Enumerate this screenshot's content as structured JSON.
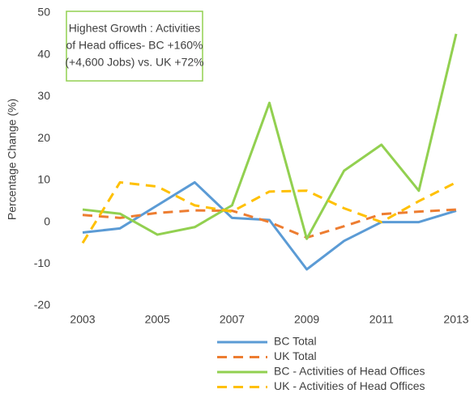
{
  "chart_data": {
    "type": "line",
    "y_axis_label": "Percentage Change (%)",
    "annotation": [
      "Highest Growth : Activities",
      "of Head offices-  BC +160%",
      "(+4,600 Jobs) vs. UK +72%"
    ],
    "annotation_border_color": "#92d050",
    "x": [
      2003,
      2004,
      2005,
      2006,
      2007,
      2008,
      2009,
      2010,
      2011,
      2012,
      2013
    ],
    "xlim": [
      2003,
      2013
    ],
    "xticks": [
      2003,
      2005,
      2007,
      2009,
      2011,
      2013
    ],
    "ylim": [
      -20,
      50
    ],
    "yticks": [
      -20,
      -10,
      0,
      10,
      20,
      30,
      40,
      50
    ],
    "series": [
      {
        "name": "BC Total",
        "color": "#5b9bd5",
        "dashed": false,
        "values": [
          -2.5,
          -1.5,
          4,
          9.5,
          1,
          0.5,
          -11.3,
          -4.5,
          0,
          0,
          2.7
        ]
      },
      {
        "name": "UK Total",
        "color": "#ed7d31",
        "dashed": true,
        "values": [
          1.7,
          1,
          2.2,
          2.8,
          2.7,
          0,
          -3.7,
          -1,
          1.9,
          2.5,
          3
        ]
      },
      {
        "name": "BC - Activities of Head Offices",
        "color": "#92d050",
        "dashed": false,
        "values": [
          3,
          2,
          -3,
          -1.2,
          4,
          28.5,
          -4,
          12.3,
          18.5,
          7.5,
          45
        ]
      },
      {
        "name": "UK - Activities of Head Offices",
        "color": "#ffc000",
        "dashed": true,
        "values": [
          -5,
          9.5,
          8.5,
          4,
          2.5,
          7.3,
          7.5,
          3.3,
          0,
          5,
          9.5
        ]
      }
    ]
  }
}
